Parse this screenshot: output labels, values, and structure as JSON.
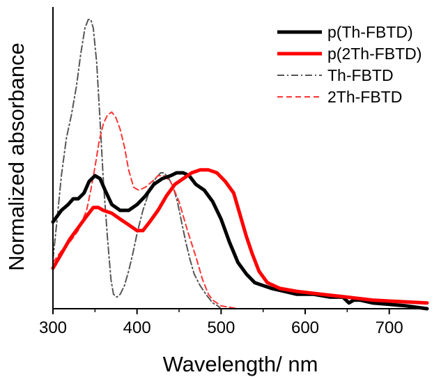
{
  "chart_data": {
    "type": "line",
    "title": "",
    "xlabel": "Wavelength/ nm",
    "ylabel": "Normalized absorbance",
    "xlim": [
      300,
      745
    ],
    "ylim": [
      0,
      1.0
    ],
    "x_ticks": [
      300,
      400,
      500,
      600,
      700
    ],
    "x_tick_labels": [
      "300",
      "400",
      "500",
      "600",
      "700"
    ],
    "y_ticks_shown": false,
    "grid": false,
    "legend_position": "top-right",
    "series": [
      {
        "name": "p(Th-FBTD)",
        "color": "#000000",
        "style": "solid-thick",
        "x": [
          300,
          310,
          318,
          324,
          330,
          337,
          343,
          350,
          356,
          362,
          370,
          380,
          390,
          400,
          410,
          420,
          430,
          440,
          447,
          455,
          462,
          470,
          480,
          490,
          500,
          510,
          520,
          530,
          540,
          550,
          560,
          575,
          590,
          610,
          630,
          645,
          652,
          658,
          665,
          680,
          700,
          720,
          745
        ],
        "y": [
          0.3,
          0.34,
          0.36,
          0.38,
          0.38,
          0.4,
          0.44,
          0.46,
          0.45,
          0.41,
          0.36,
          0.34,
          0.34,
          0.36,
          0.39,
          0.43,
          0.45,
          0.46,
          0.47,
          0.47,
          0.46,
          0.43,
          0.41,
          0.37,
          0.31,
          0.23,
          0.16,
          0.12,
          0.09,
          0.08,
          0.07,
          0.06,
          0.05,
          0.05,
          0.04,
          0.04,
          0.02,
          0.03,
          0.03,
          0.02,
          0.015,
          0.01,
          0.0
        ]
      },
      {
        "name": "p(2Th-FBTD)",
        "color": "#ff0000",
        "style": "solid-thick",
        "x": [
          300,
          310,
          320,
          330,
          340,
          348,
          354,
          360,
          370,
          380,
          390,
          400,
          407,
          415,
          425,
          435,
          445,
          455,
          465,
          475,
          485,
          495,
          505,
          515,
          522,
          530,
          537,
          545,
          555,
          570,
          590,
          620,
          650,
          680,
          710,
          745
        ],
        "y": [
          0.14,
          0.19,
          0.24,
          0.28,
          0.32,
          0.35,
          0.35,
          0.34,
          0.33,
          0.31,
          0.29,
          0.27,
          0.27,
          0.3,
          0.34,
          0.39,
          0.43,
          0.45,
          0.47,
          0.48,
          0.48,
          0.47,
          0.44,
          0.4,
          0.33,
          0.25,
          0.19,
          0.13,
          0.09,
          0.07,
          0.06,
          0.05,
          0.04,
          0.03,
          0.025,
          0.02
        ]
      },
      {
        "name": "Th-FBTD",
        "color": "#555555",
        "style": "dash-dot",
        "x": [
          300,
          305,
          310,
          316,
          322,
          328,
          333,
          338,
          342,
          345,
          348,
          352,
          356,
          360,
          365,
          369,
          372,
          376,
          380,
          385,
          390,
          395,
          400,
          407,
          415,
          422,
          428,
          432,
          438,
          443,
          448,
          453,
          458,
          463,
          468,
          475,
          482,
          490,
          496,
          500
        ],
        "y": [
          0.17,
          0.31,
          0.46,
          0.59,
          0.67,
          0.77,
          0.88,
          0.97,
          1.0,
          1.0,
          0.97,
          0.85,
          0.65,
          0.44,
          0.24,
          0.1,
          0.05,
          0.04,
          0.05,
          0.08,
          0.13,
          0.19,
          0.26,
          0.34,
          0.41,
          0.45,
          0.47,
          0.47,
          0.45,
          0.42,
          0.37,
          0.3,
          0.23,
          0.17,
          0.12,
          0.08,
          0.05,
          0.02,
          0.01,
          0.0
        ]
      },
      {
        "name": "2Th-FBTD",
        "color": "#ff3333",
        "style": "dashed",
        "x": [
          300,
          310,
          320,
          330,
          340,
          345,
          350,
          355,
          360,
          365,
          370,
          375,
          380,
          385,
          390,
          396,
          402,
          410,
          418,
          425,
          432,
          440,
          450,
          460,
          470,
          478,
          485,
          490,
          500,
          510,
          520
        ],
        "y": [
          0.16,
          0.2,
          0.23,
          0.27,
          0.34,
          0.41,
          0.49,
          0.58,
          0.64,
          0.67,
          0.68,
          0.66,
          0.62,
          0.56,
          0.48,
          0.42,
          0.41,
          0.42,
          0.44,
          0.46,
          0.46,
          0.44,
          0.37,
          0.27,
          0.18,
          0.1,
          0.05,
          0.03,
          0.01,
          0.005,
          0.0
        ]
      }
    ]
  }
}
